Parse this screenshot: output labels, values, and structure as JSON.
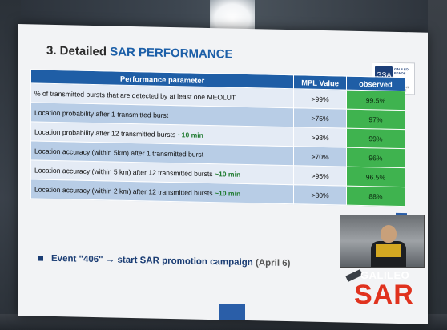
{
  "slide": {
    "title_prefix": "3. Detailed ",
    "title_accent": "SAR PERFORMANCE",
    "logo": {
      "mark": "GSA",
      "name": "GALILEO",
      "name2": "EGNOS",
      "tagline": "NAVIGATION SOLUTIONS POWERED BY EUROPE"
    },
    "table": {
      "headers": {
        "param": "Performance parameter",
        "mpl": "MPL Value",
        "observed": "observed"
      },
      "rows": [
        {
          "param": "% of transmitted bursts that are detected by at least one MEOLUT",
          "note": "",
          "mpl": ">99%",
          "observed": "99.5%"
        },
        {
          "param": "Location probability after 1 transmitted burst",
          "note": "",
          "mpl": ">75%",
          "observed": "97%"
        },
        {
          "param": "Location probability after 12 transmitted bursts ",
          "note": "~10 min",
          "mpl": ">98%",
          "observed": "99%"
        },
        {
          "param": "Location accuracy (within 5km) after 1 transmitted burst",
          "note": "",
          "mpl": ">70%",
          "observed": "96%"
        },
        {
          "param": "Location accuracy (within 5 km) after 12 transmitted bursts ",
          "note": "~10 min",
          "mpl": ">95%",
          "observed": "96.5%"
        },
        {
          "param": "Location accuracy (within 2 km) after 12 transmitted bursts ",
          "note": "~10 min",
          "mpl": ">80%",
          "observed": "88%"
        }
      ]
    },
    "bullet": {
      "text": "Event \"406\" → start SAR promotion campaign ",
      "date": "(April 6)"
    },
    "brand": {
      "galileo": "GALILEO",
      "sar": "SAR"
    }
  },
  "colors": {
    "header_blue": "#1f5ea6",
    "observed_green": "#3fb34f",
    "brand_red": "#e0321e",
    "title_accent": "#1c5fa8"
  }
}
